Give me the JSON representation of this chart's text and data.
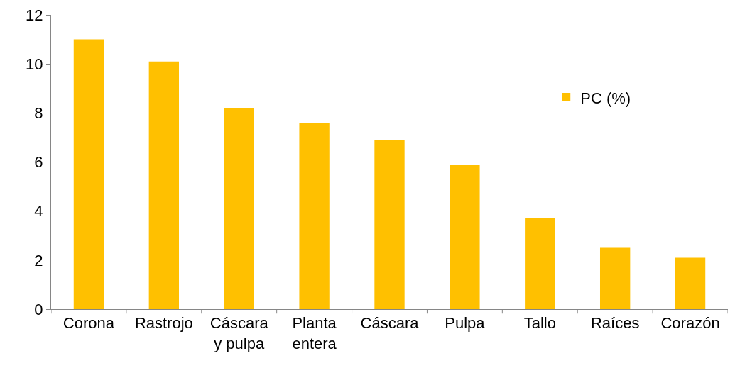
{
  "chart_data": {
    "type": "bar",
    "categories": [
      "Corona",
      "Rastrojo",
      "Cáscara y pulpa",
      "Planta entera",
      "Cáscara",
      "Pulpa",
      "Tallo",
      "Raíces",
      "Corazón"
    ],
    "series": [
      {
        "name": "PC (%)",
        "color": "#ffc000",
        "values": [
          11,
          10.1,
          8.2,
          7.6,
          6.9,
          5.9,
          3.7,
          2.5,
          2.1
        ]
      }
    ],
    "ylim": [
      0,
      12
    ],
    "yticks": [
      0,
      2,
      4,
      6,
      8,
      10,
      12
    ],
    "legend": "right"
  }
}
